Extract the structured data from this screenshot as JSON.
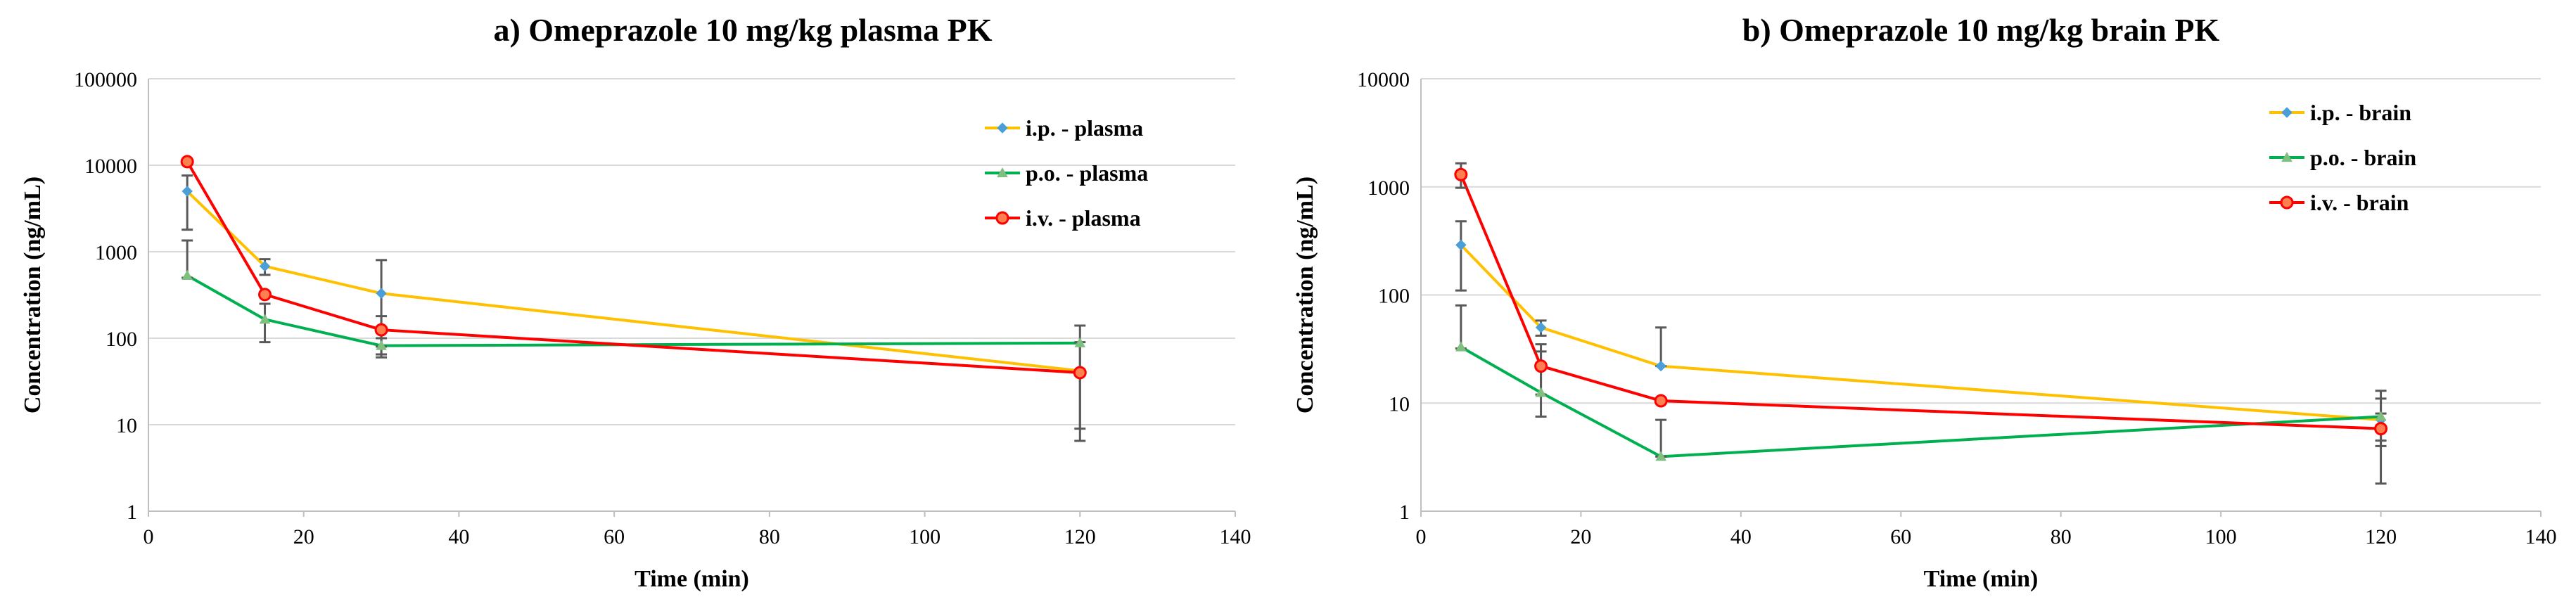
{
  "colors": {
    "ip": "#FFC000",
    "po": "#00B050",
    "iv": "#FF0000",
    "ip_marker": "#4A9FD8",
    "po_marker": "#7FBF7F",
    "iv_marker_fill": "#FF7F50",
    "error_bar": "#595959",
    "grid": "#D9D9D9",
    "axis": "#BFBFBF",
    "text": "#000000"
  },
  "chart_data": [
    {
      "type": "line",
      "title": "a) Omeprazole 10 mg/kg plasma PK",
      "xlabel": "Time (min)",
      "ylabel": "Concentration (ng/mL)",
      "xlim": [
        0,
        140
      ],
      "ylim": [
        1,
        100000
      ],
      "yscale": "log",
      "grid": true,
      "legend": "top-right",
      "x_ticks": [
        "0",
        "20",
        "40",
        "60",
        "80",
        "100",
        "120",
        "140"
      ],
      "y_ticks": [
        "1",
        "10",
        "100",
        "1000",
        "10000",
        "100000"
      ],
      "series": [
        {
          "name": "i.p. - plasma",
          "color_key": "ip",
          "marker": "diamond",
          "x": [
            5,
            15,
            30,
            120
          ],
          "y": [
            5000,
            680,
            330,
            42
          ],
          "err_low": [
            1800,
            540,
            80,
            42
          ],
          "err_high": [
            7600,
            820,
            800,
            42
          ]
        },
        {
          "name": "p.o. - plasma",
          "color_key": "po",
          "marker": "triangle",
          "x": [
            5,
            15,
            30,
            120
          ],
          "y": [
            530,
            165,
            82,
            88
          ],
          "err_low": [
            500,
            90,
            60,
            6.5
          ],
          "err_high": [
            1350,
            250,
            100,
            140
          ]
        },
        {
          "name": "i.v. - plasma",
          "color_key": "iv",
          "marker": "circle",
          "x": [
            5,
            15,
            30,
            120
          ],
          "y": [
            11000,
            320,
            125,
            40
          ],
          "err_low": [
            11000,
            320,
            65,
            9
          ],
          "err_high": [
            11000,
            320,
            180,
            90
          ]
        }
      ]
    },
    {
      "type": "line",
      "title": "b) Omeprazole 10 mg/kg brain PK",
      "xlabel": "Time (min)",
      "ylabel": "Concentration (ng/mL)",
      "xlim": [
        0,
        140
      ],
      "ylim": [
        1,
        10000
      ],
      "yscale": "log",
      "grid": true,
      "legend": "top-right",
      "x_ticks": [
        "0",
        "20",
        "40",
        "60",
        "80",
        "100",
        "120",
        "140"
      ],
      "y_ticks": [
        "1",
        "10",
        "100",
        "1000",
        "10000"
      ],
      "series": [
        {
          "name": "i.p. - brain",
          "color_key": "ip",
          "marker": "diamond",
          "x": [
            5,
            15,
            30,
            120
          ],
          "y": [
            290,
            50,
            22,
            7
          ],
          "err_low": [
            110,
            42,
            22,
            4
          ],
          "err_high": [
            480,
            58,
            50,
            11
          ]
        },
        {
          "name": "p.o. - brain",
          "color_key": "po",
          "marker": "triangle",
          "x": [
            5,
            15,
            30,
            120
          ],
          "y": [
            33,
            12.5,
            3.2,
            7.5
          ],
          "err_low": [
            32,
            7.5,
            3.2,
            1.8
          ],
          "err_high": [
            80,
            30,
            7,
            13
          ]
        },
        {
          "name": "i.v. - brain",
          "color_key": "iv",
          "marker": "circle",
          "x": [
            5,
            15,
            30,
            120
          ],
          "y": [
            1300,
            22,
            10.5,
            5.8
          ],
          "err_low": [
            980,
            12,
            10.5,
            4.5
          ],
          "err_high": [
            1650,
            35,
            10.5,
            8
          ]
        }
      ]
    }
  ]
}
